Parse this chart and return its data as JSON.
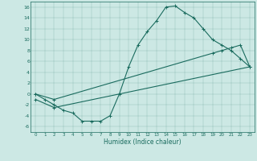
{
  "xlabel": "Humidex (Indice chaleur)",
  "bg_color": "#cce8e4",
  "line_color": "#1a6b5e",
  "ylim": [
    -7,
    17
  ],
  "yticks": [
    -6,
    -4,
    -2,
    0,
    2,
    4,
    6,
    8,
    10,
    12,
    14,
    16
  ],
  "xlim": [
    -0.5,
    23.5
  ],
  "curve1_x": [
    0,
    1,
    2,
    3,
    4,
    5,
    6,
    7,
    8,
    9,
    10,
    11,
    12,
    13,
    14,
    15,
    16,
    17,
    18,
    19,
    20,
    21,
    22,
    23
  ],
  "curve1_y": [
    0,
    -1,
    -2,
    -3,
    -3.5,
    -5,
    -5,
    -5,
    -4,
    0,
    5,
    9,
    11.5,
    13.5,
    16,
    16.2,
    15,
    14,
    12,
    10,
    9,
    8,
    6.5,
    5
  ],
  "curve2_x": [
    0,
    2,
    23
  ],
  "curve2_y": [
    -1,
    -2.5,
    5
  ],
  "curve3_x": [
    0,
    2,
    19,
    20,
    21,
    22,
    23
  ],
  "curve3_y": [
    0,
    -1,
    7.5,
    8,
    8.5,
    9,
    5
  ],
  "x_ticks": [
    0,
    1,
    2,
    3,
    4,
    5,
    6,
    7,
    8,
    9,
    10,
    11,
    12,
    13,
    14,
    15,
    16,
    17,
    18,
    19,
    20,
    21,
    22,
    23
  ]
}
